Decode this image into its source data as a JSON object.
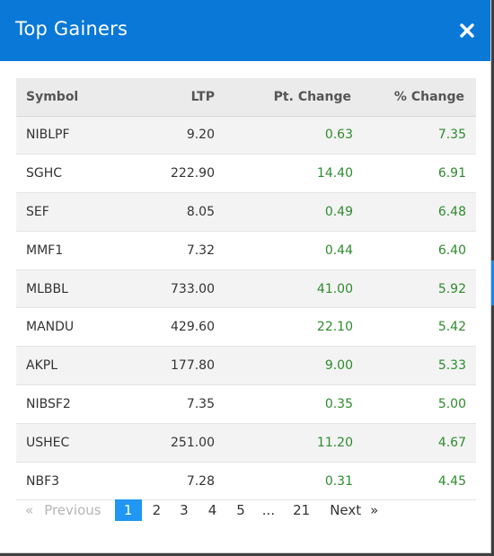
{
  "modal": {
    "title": "Top Gainers",
    "close_icon": "close-icon"
  },
  "table": {
    "headers": {
      "symbol": "Symbol",
      "ltp": "LTP",
      "pt_change": "Pt. Change",
      "pct_change": "% Change"
    },
    "rows": [
      {
        "symbol": "NIBLPF",
        "ltp": "9.20",
        "pt_change": "0.63",
        "pct_change": "7.35"
      },
      {
        "symbol": "SGHC",
        "ltp": "222.90",
        "pt_change": "14.40",
        "pct_change": "6.91"
      },
      {
        "symbol": "SEF",
        "ltp": "8.05",
        "pt_change": "0.49",
        "pct_change": "6.48"
      },
      {
        "symbol": "MMF1",
        "ltp": "7.32",
        "pt_change": "0.44",
        "pct_change": "6.40"
      },
      {
        "symbol": "MLBBL",
        "ltp": "733.00",
        "pt_change": "41.00",
        "pct_change": "5.92"
      },
      {
        "symbol": "MANDU",
        "ltp": "429.60",
        "pt_change": "22.10",
        "pct_change": "5.42"
      },
      {
        "symbol": "AKPL",
        "ltp": "177.80",
        "pt_change": "9.00",
        "pct_change": "5.33"
      },
      {
        "symbol": "NIBSF2",
        "ltp": "7.35",
        "pt_change": "0.35",
        "pct_change": "5.00"
      },
      {
        "symbol": "USHEC",
        "ltp": "251.00",
        "pt_change": "11.20",
        "pct_change": "4.67"
      },
      {
        "symbol": "NBF3",
        "ltp": "7.28",
        "pt_change": "0.31",
        "pct_change": "4.45"
      }
    ]
  },
  "pagination": {
    "prev_arrow": "«",
    "previous": "Previous",
    "pages": [
      "1",
      "2",
      "3",
      "4",
      "5"
    ],
    "active_page": "1",
    "ellipsis": "...",
    "last_page": "21",
    "next": "Next",
    "next_arrow": "»"
  },
  "colors": {
    "header_bg": "#0a78d7",
    "positive": "#2e8b2e",
    "active_page": "#2196f3"
  }
}
